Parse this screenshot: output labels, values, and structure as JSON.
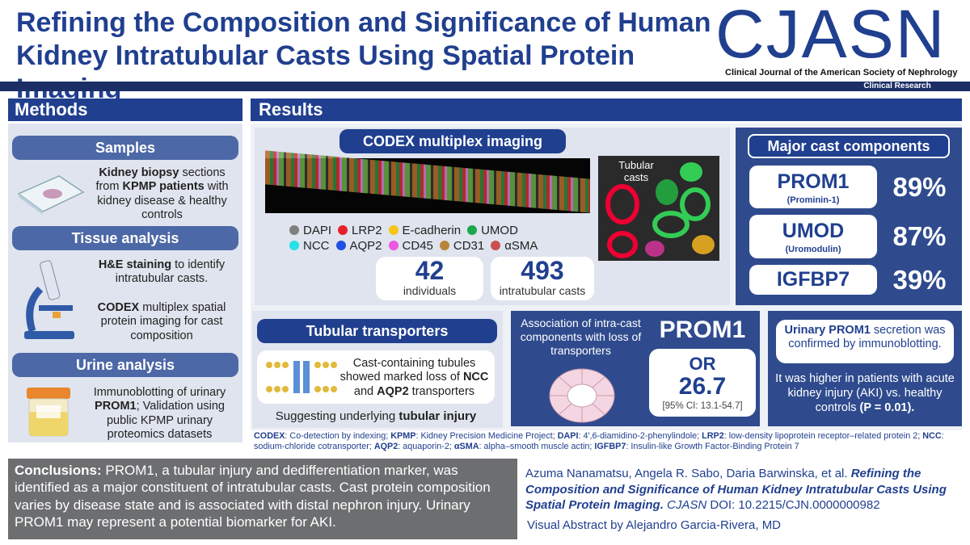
{
  "header": {
    "title": "Refining the Composition and Significance of Human Kidney Intratubular Casts Using Spatial Protein Imaging",
    "journal": "CJASN",
    "journal_full": "Clinical Journal of the American Society of Nephrology",
    "article_type": "Clinical Research"
  },
  "methods": {
    "title": "Methods",
    "sections": [
      {
        "title": "Samples",
        "paragraphs": [
          [
            {
              "text": "Kidney biopsy",
              "bold": true
            },
            {
              "text": " sections from "
            },
            {
              "text": "KPMP patients",
              "bold": true
            },
            {
              "text": " with kidney disease & healthy controls"
            }
          ]
        ]
      },
      {
        "title": "Tissue analysis",
        "paragraphs": [
          [
            {
              "text": "H&E staining",
              "bold": true
            },
            {
              "text": " to identify intratubular casts."
            }
          ],
          [
            {
              "text": "CODEX",
              "bold": true
            },
            {
              "text": " multiplex spatial protein imaging for cast composition"
            }
          ]
        ]
      },
      {
        "title": "Urine analysis",
        "paragraphs": [
          [
            {
              "text": "Immunoblotting of urinary "
            },
            {
              "text": "PROM1",
              "bold": true
            },
            {
              "text": "; Validation using public KPMP urinary proteomics datasets"
            }
          ]
        ]
      }
    ]
  },
  "results": {
    "title": "Results",
    "codex": {
      "title": "CODEX multiplex imaging",
      "image_label": "Tubular casts",
      "legend": [
        [
          {
            "label": "DAPI",
            "color": "#7f7f7f"
          },
          {
            "label": "LRP2",
            "color": "#e8202a"
          },
          {
            "label": "E-cadherin",
            "color": "#f5c518"
          },
          {
            "label": "UMOD",
            "color": "#1aa84b"
          }
        ],
        [
          {
            "label": "NCC",
            "color": "#24e3e8"
          },
          {
            "label": "AQP2",
            "color": "#1f4fe0"
          },
          {
            "label": "CD45",
            "color": "#ee55e0"
          },
          {
            "label": "CD31",
            "color": "#b7853a"
          },
          {
            "label": "αSMA",
            "color": "#c9504f"
          }
        ]
      ],
      "stats": [
        {
          "number": "42",
          "label": "individuals"
        },
        {
          "number": "493",
          "label": "intratubular casts"
        }
      ]
    },
    "components": {
      "title": "Major cast components",
      "items": [
        {
          "name": "PROM1",
          "full_name": "(Prominin-1)",
          "percent": "89%"
        },
        {
          "name": "UMOD",
          "full_name": "(Uromodulin)",
          "percent": "87%"
        },
        {
          "name": "IGFBP7",
          "percent": "39%"
        }
      ]
    },
    "transporters": {
      "title": "Tubular transporters",
      "finding": [
        {
          "text": "Cast-containing tubules showed marked loss of "
        },
        {
          "text": "NCC",
          "bold": true
        },
        {
          "text": " and "
        },
        {
          "text": "AQP2",
          "bold": true
        },
        {
          "text": " transporters"
        }
      ],
      "conclusion": [
        {
          "text": "Suggesting underlying "
        },
        {
          "text": "tubular injury",
          "bold": true
        }
      ]
    },
    "association": {
      "description": "Association of intra-cast components with loss of transporters",
      "marker": "PROM1",
      "measure": "OR",
      "value": "26.7",
      "ci": "[95% CI: 13.1-54.7]"
    },
    "urinary": {
      "finding": [
        {
          "text": "Urinary PROM1",
          "bold": true
        },
        {
          "text": " secretion was confirmed by immunoblotting."
        }
      ],
      "detail": [
        {
          "text": "It was higher in patients with acute kidney injury (AKI) vs. healthy controls "
        },
        {
          "text": "(P = 0.01).",
          "bold": true
        }
      ]
    }
  },
  "abbreviations": [
    {
      "text": "CODEX",
      "bold": true
    },
    {
      "text": ": Co-detection by indexing; "
    },
    {
      "text": "KPMP",
      "bold": true
    },
    {
      "text": ": Kidney Precision Medicine Project; "
    },
    {
      "text": "DAPI",
      "bold": true
    },
    {
      "text": ": 4′,6-diamidino-2-phenylindole; "
    },
    {
      "text": "LRP2",
      "bold": true
    },
    {
      "text": ": low-density lipoprotein receptor–related protein 2; "
    },
    {
      "text": "NCC",
      "bold": true
    },
    {
      "text": ": sodium-chloride cotransporter; "
    },
    {
      "text": "AQP2",
      "bold": true
    },
    {
      "text": ": aquaporin-2; "
    },
    {
      "text": "αSMA",
      "bold": true
    },
    {
      "text": ": alpha–smooth muscle actin; "
    },
    {
      "text": "IGFBP7",
      "bold": true
    },
    {
      "text": ": Insulin-like Growth Factor-Binding Protein 7"
    }
  ],
  "conclusions": [
    {
      "text": "Conclusions:",
      "bold": true
    },
    {
      "text": " PROM1, a tubular injury and dedifferentiation marker, was identified as a major constituent of intratubular casts. Cast protein composition varies by disease state and is associated with distal nephron injury. Urinary PROM1 may represent a potential biomarker for AKI."
    }
  ],
  "citation": [
    {
      "text": "Azuma Nanamatsu, Angela R. Sabo, Daria Barwinska, et al. "
    },
    {
      "text": "Refining the Composition and Significance of Human Kidney Intratubular Casts Using Spatial Protein Imaging.",
      "bold": true,
      "italic": true
    },
    {
      "text": " "
    },
    {
      "text": "CJASN",
      "italic": true
    },
    {
      "text": " DOI: 10.2215/CJN.0000000982"
    }
  ],
  "credit": "Visual Abstract by Alejandro Garcia-Rivera, MD"
}
